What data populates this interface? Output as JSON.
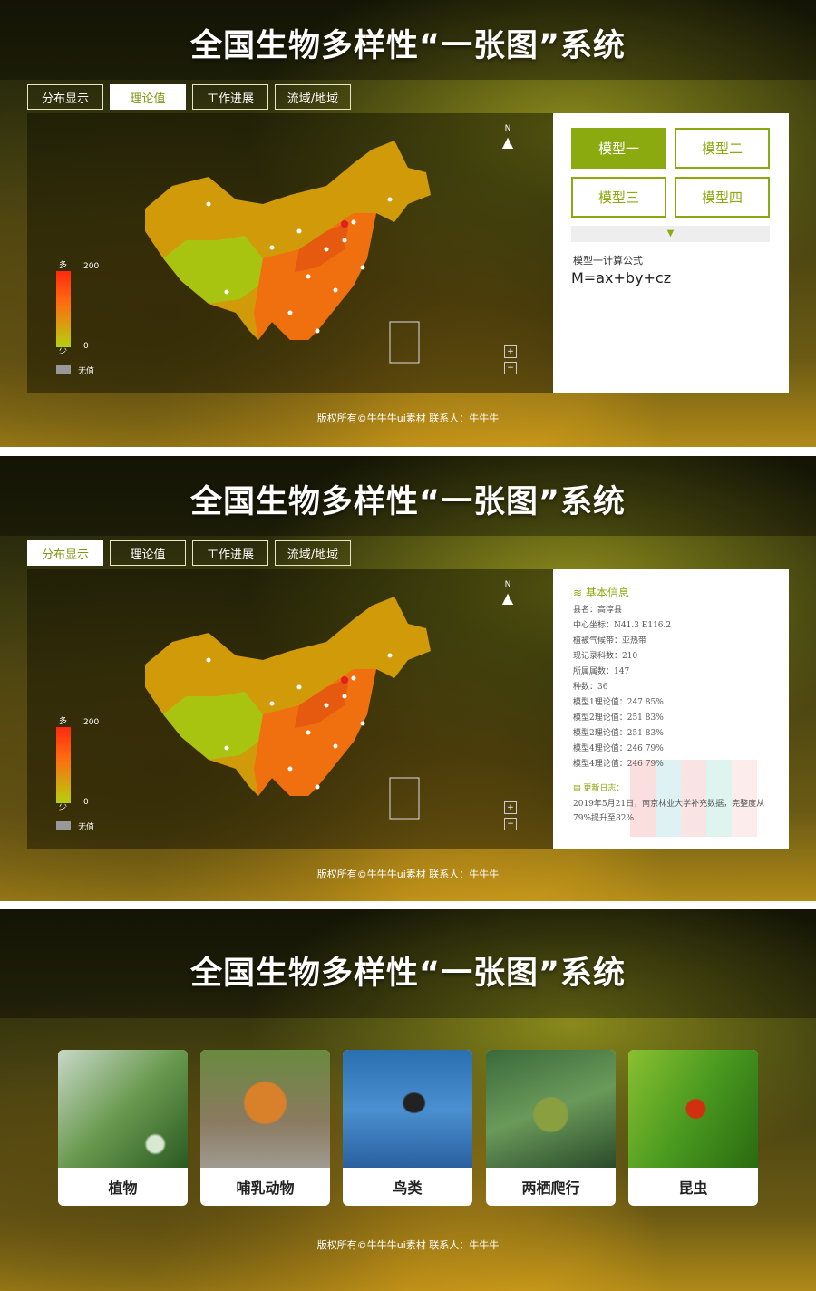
{
  "title": "全国生物多样性“一张图”系统",
  "tabs": [
    "分布显示",
    "理论值",
    "工作进展",
    "流域/地域"
  ],
  "legend": {
    "more": "多",
    "less": "少",
    "max": "200",
    "min": "0",
    "none": "无值"
  },
  "north": "N",
  "zoom": {
    "in": "+",
    "out": "−"
  },
  "models": [
    "模型一",
    "模型二",
    "模型三",
    "模型四"
  ],
  "formula": {
    "label": "模型一计算公式",
    "text": "M=ax+by+cz"
  },
  "info": {
    "heading": "基本信息",
    "lines": [
      "县名：高淳县",
      "中心坐标：N41.3 E116.2",
      "植被气候带：亚热带",
      "现记录科数：210",
      "所属属数：147",
      "种数：36",
      "模型1理论值：247 85%",
      "模型2理论值：251 83%",
      "模型2理论值：251 83%",
      "模型4理论值：246 79%",
      "模型4理论值：246 79%"
    ],
    "log_label": "更新日志：",
    "log_text": "2019年5月21日，南京林业大学补充数据，完整度从79%提升至82%"
  },
  "footer": "版权所有©牛牛牛ui素材 联系人：牛牛牛",
  "categories": [
    "植物",
    "哺乳动物",
    "鸟类",
    "两栖爬行",
    "昆虫"
  ],
  "colors": {
    "accent": "#8aaa10"
  }
}
